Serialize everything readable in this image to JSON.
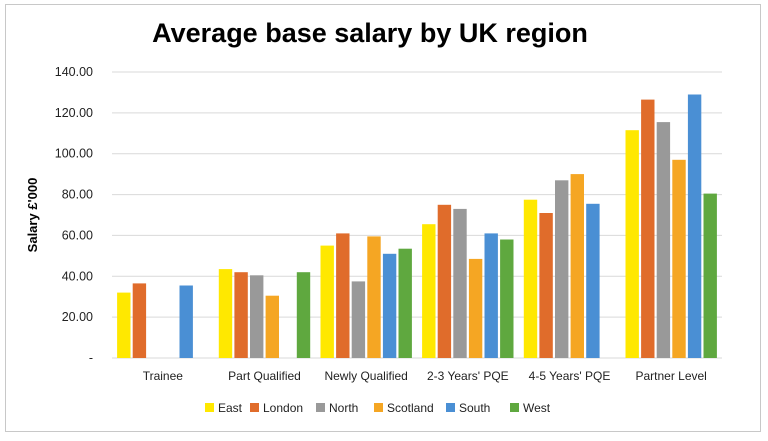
{
  "chart_data": {
    "type": "bar",
    "title": "Average base salary by UK region",
    "xlabel": "",
    "ylabel": "Salary £'000",
    "ylim": [
      0,
      140
    ],
    "yticks": [
      0,
      20,
      40,
      60,
      80,
      100,
      120,
      140
    ],
    "ytick_labels": [
      "-",
      "20.00",
      "40.00",
      "60.00",
      "80.00",
      "100.00",
      "120.00",
      "140.00"
    ],
    "grid": true,
    "legend_position": "bottom",
    "categories": [
      "Trainee",
      "Part Qualified",
      "Newly Qualified",
      "2-3 Years' PQE",
      "4-5 Years' PQE",
      "Partner Level"
    ],
    "series": [
      {
        "name": "East",
        "color": "#ffe800",
        "values": [
          32,
          43.5,
          55,
          65.5,
          77.5,
          111.5
        ]
      },
      {
        "name": "London",
        "color": "#e06c2b",
        "values": [
          36.5,
          42,
          61,
          75,
          71,
          126.5
        ]
      },
      {
        "name": "North",
        "color": "#999999",
        "values": [
          null,
          40.5,
          37.5,
          73,
          87,
          115.5
        ]
      },
      {
        "name": "Scotland",
        "color": "#f5a623",
        "values": [
          null,
          30.5,
          59.5,
          48.5,
          90,
          97
        ]
      },
      {
        "name": "South",
        "color": "#4a8fd4",
        "values": [
          35.5,
          null,
          51,
          61,
          75.5,
          129
        ]
      },
      {
        "name": "West",
        "color": "#5fa83f",
        "values": [
          null,
          42,
          53.5,
          58,
          null,
          80.5
        ]
      }
    ]
  }
}
